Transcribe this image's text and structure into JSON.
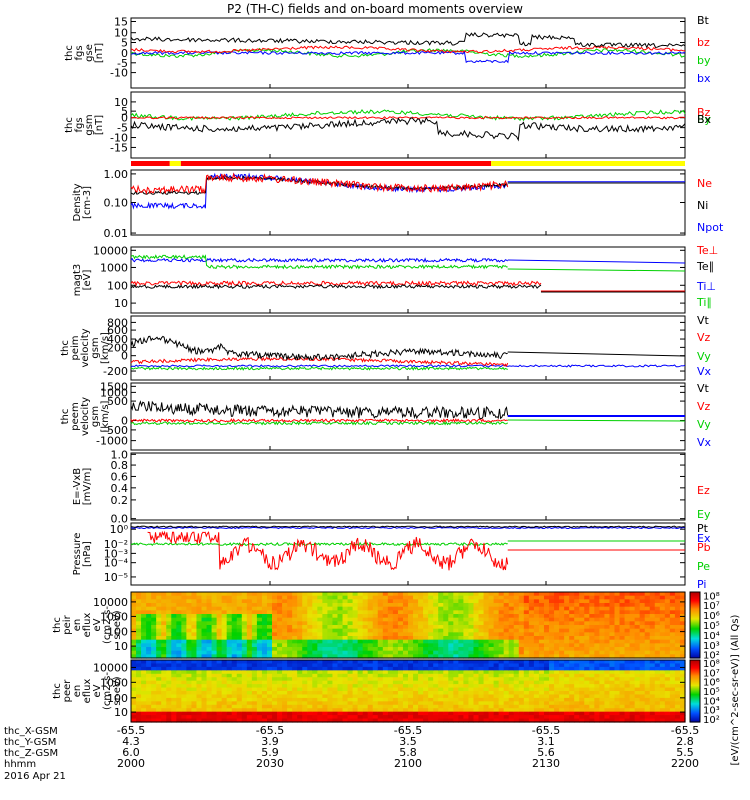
{
  "title": "P2 (TH-C) fields and on-board moments overview",
  "colors": {
    "black": "#000000",
    "red": "#ff0000",
    "green": "#00d000",
    "blue": "#0000ff",
    "yellow": "#ffff00"
  },
  "panels": [
    {
      "id": "fgs",
      "ylabel": [
        "thc",
        "fgs",
        "gse",
        "[nT]"
      ],
      "ticks": [
        "15",
        "10",
        "5",
        "0",
        "-5",
        "-10"
      ],
      "legend": [
        {
          "text": "Bt",
          "color": "black"
        },
        {
          "text": "bz",
          "color": "red"
        },
        {
          "text": "by",
          "color": "green"
        },
        {
          "text": "bx",
          "color": "blue"
        }
      ]
    },
    {
      "id": "fgs_gsm",
      "ylabel": [
        "thc",
        "fgs",
        "gsm",
        "[nT]"
      ],
      "ticks": [
        "10",
        "5",
        "0",
        "-5",
        "-10",
        "-15"
      ],
      "legend": [
        {
          "text": "Bz",
          "color": "red"
        },
        {
          "text": "By",
          "color": "green"
        },
        {
          "text": "Bx",
          "color": "black"
        }
      ]
    },
    {
      "id": "density",
      "ylabel": [
        "Density",
        "[cm-3]"
      ],
      "ticks": [
        "1.00",
        "0.10",
        "0.01"
      ],
      "legend": [
        {
          "text": "Ne",
          "color": "red"
        },
        {
          "text": "Ni",
          "color": "black"
        },
        {
          "text": "Npot",
          "color": "blue"
        }
      ]
    },
    {
      "id": "temp",
      "ylabel": [
        "magt3",
        "[eV]"
      ],
      "ticks": [
        "10000",
        "1000",
        "100",
        "10"
      ],
      "legend": [
        {
          "text": "Te⊥",
          "color": "red"
        },
        {
          "text": "Te∥",
          "color": "black"
        },
        {
          "text": "Ti⊥",
          "color": "blue"
        },
        {
          "text": "Ti∥",
          "color": "green"
        }
      ]
    },
    {
      "id": "peim",
      "ylabel": [
        "thc",
        "peim",
        "velocity",
        "gsm",
        "[km/s]"
      ],
      "ticks": [
        "800",
        "600",
        "400",
        "200",
        "0",
        "-200"
      ],
      "legend": [
        {
          "text": "Vt",
          "color": "black"
        },
        {
          "text": "Vz",
          "color": "red"
        },
        {
          "text": "Vy",
          "color": "green"
        },
        {
          "text": "Vx",
          "color": "blue"
        }
      ]
    },
    {
      "id": "peem",
      "ylabel": [
        "thc",
        "peem",
        "velocity",
        "gsm",
        "[km/s]"
      ],
      "ticks": [
        "1500",
        "1000",
        "500",
        "0",
        "-500",
        "-1000"
      ],
      "legend": [
        {
          "text": "Vt",
          "color": "black"
        },
        {
          "text": "Vz",
          "color": "red"
        },
        {
          "text": "Vy",
          "color": "green"
        },
        {
          "text": "Vx",
          "color": "blue"
        }
      ]
    },
    {
      "id": "efield",
      "ylabel": [
        "E=-VxB",
        "[mV/m]"
      ],
      "ticks": [
        "1.0",
        "0.8",
        "0.6",
        "0.4",
        "0.2",
        "0.0"
      ],
      "legend": [
        {
          "text": "Ez",
          "color": "red"
        },
        {
          "text": "Ey",
          "color": "green"
        },
        {
          "text": "Ex",
          "color": "blue"
        }
      ]
    },
    {
      "id": "pressure",
      "ylabel": [
        "Pressure",
        "[nPa]"
      ],
      "ticks": [
        "10⁰",
        "10⁻²",
        "10⁻³",
        "10⁻⁴",
        "10⁻⁵"
      ],
      "legend": [
        {
          "text": "Pt",
          "color": "black"
        },
        {
          "text": "Pb",
          "color": "red"
        },
        {
          "text": "Pe",
          "color": "green"
        },
        {
          "text": "Pi",
          "color": "blue"
        }
      ]
    },
    {
      "id": "peir",
      "ylabel": [
        "thc",
        "peir",
        "en",
        "eflux",
        "eV",
        "(cm2-s-",
        "sr-eV)"
      ],
      "ticks": [
        "10000",
        "1000",
        "100",
        "10"
      ]
    },
    {
      "id": "peer",
      "ylabel": [
        "thc",
        "peer",
        "en",
        "eflux",
        "eV",
        "(cm2-s-",
        "sr-eV)"
      ],
      "ticks": [
        "10000",
        "1000",
        "100",
        "10"
      ]
    }
  ],
  "colorbar": {
    "label": "[eV/(cm^2-sec-sr-eV)] (All Qs)",
    "ticks": [
      "10⁸",
      "10⁷",
      "10⁶",
      "10⁵",
      "10⁴",
      "10³",
      "10²"
    ]
  },
  "xaxis": {
    "rows": [
      {
        "label": "thc_X-GSM",
        "values": [
          "-65.5",
          "-65.5",
          "-65.5",
          "-65.5",
          "-65.5"
        ]
      },
      {
        "label": "thc_Y-GSM",
        "values": [
          "4.3",
          "3.9",
          "3.5",
          "3.1",
          "2.8"
        ]
      },
      {
        "label": "thc_Z-GSM",
        "values": [
          "6.0",
          "5.9",
          "5.8",
          "5.6",
          "5.5"
        ]
      },
      {
        "label": "hhmm",
        "values": [
          "2000",
          "2030",
          "2100",
          "2130",
          "2200"
        ]
      }
    ],
    "date": "2016 Apr 21"
  },
  "chart_data": {
    "type": "line",
    "title": "P2 (TH-C) fields and on-board moments overview",
    "x": [
      "2000",
      "2030",
      "2100",
      "2130",
      "2200"
    ],
    "xlabel": "hhmm",
    "panels": [
      {
        "name": "thc fgs gse [nT]",
        "ylim": [
          -10,
          15
        ],
        "series": [
          {
            "name": "Bt",
            "values": [
              9,
              5,
              4,
              6,
              2
            ]
          },
          {
            "name": "bz",
            "values": [
              2,
              1,
              0,
              2,
              1
            ]
          },
          {
            "name": "by",
            "values": [
              1,
              -2,
              0,
              1,
              0
            ]
          },
          {
            "name": "bx",
            "values": [
              0,
              0,
              -3,
              3,
              1
            ]
          }
        ]
      },
      {
        "name": "thc fgs gsm [nT]",
        "ylim": [
          -15,
          10
        ],
        "series": [
          {
            "name": "Bz",
            "values": [
              1,
              0,
              0,
              0,
              0
            ]
          },
          {
            "name": "By",
            "values": [
              3,
              2,
              1,
              2,
              0
            ]
          },
          {
            "name": "Bx",
            "values": [
              -4,
              -5,
              -8,
              -5,
              -1
            ]
          }
        ]
      },
      {
        "name": "Density [cm-3]",
        "ylim": [
          0.01,
          1
        ],
        "log": true,
        "series": [
          {
            "name": "Ne",
            "values": [
              0.3,
              0.35,
              0.6,
              0.4,
              0.4
            ]
          },
          {
            "name": "Ni",
            "values": [
              0.2,
              0.3,
              0.55,
              0.4,
              0.4
            ]
          },
          {
            "name": "Npot",
            "values": [
              0.08,
              0.3,
              0.55,
              0.4,
              0.4
            ]
          }
        ]
      },
      {
        "name": "magt3 [eV]",
        "ylim": [
          10,
          10000
        ],
        "log": true,
        "series": [
          {
            "name": "Te⊥",
            "values": [
              300,
              250,
              200,
              250,
              100
            ]
          },
          {
            "name": "Te∥",
            "values": [
              200,
              220,
              220,
              230,
              100
            ]
          },
          {
            "name": "Ti⊥",
            "values": [
              2000,
              2000,
              1500,
              1500,
              1500
            ]
          },
          {
            "name": "Ti∥",
            "values": [
              2500,
              1200,
              1000,
              900,
              900
            ]
          }
        ]
      },
      {
        "name": "thc peim velocity gsm [km/s]",
        "ylim": [
          -200,
          800
        ],
        "series": [
          {
            "name": "Vt",
            "values": [
              450,
              350,
              200,
              250,
              220
            ]
          },
          {
            "name": "Vz",
            "values": [
              100,
              50,
              50,
              20,
              0
            ]
          },
          {
            "name": "Vy",
            "values": [
              -50,
              -50,
              -30,
              -20,
              -20
            ]
          },
          {
            "name": "Vx",
            "values": [
              0,
              0,
              10,
              0,
              0
            ]
          }
        ]
      },
      {
        "name": "thc peem velocity gsm [km/s]",
        "ylim": [
          -1000,
          1500
        ],
        "series": [
          {
            "name": "Vt",
            "values": [
              700,
              400,
              300,
              200,
              150
            ]
          },
          {
            "name": "Vz",
            "values": [
              -50,
              0,
              0,
              0,
              0
            ]
          },
          {
            "name": "Vy",
            "values": [
              -150,
              -50,
              -20,
              0,
              0
            ]
          },
          {
            "name": "Vx",
            "values": [
              0,
              0,
              0,
              100,
              150
            ]
          }
        ]
      },
      {
        "name": "E=-VxB [mV/m]",
        "ylim": [
          0,
          1
        ],
        "series": []
      },
      {
        "name": "Pressure [nPa]",
        "ylim": [
          1e-05,
          1
        ],
        "log": true,
        "series": [
          {
            "name": "Pt",
            "values": [
              0.3,
              0.3,
              0.35,
              0.3,
              0.3
            ]
          },
          {
            "name": "Pb",
            "values": [
              0.05,
              0.005,
              0.002,
              0.01,
              0.003
            ]
          },
          {
            "name": "Pe",
            "values": [
              0.01,
              0.02,
              0.02,
              0.02,
              0.02
            ]
          },
          {
            "name": "Pi",
            "values": [
              0.2,
              0.2,
              0.3,
              0.25,
              0.25
            ]
          }
        ]
      }
    ]
  }
}
